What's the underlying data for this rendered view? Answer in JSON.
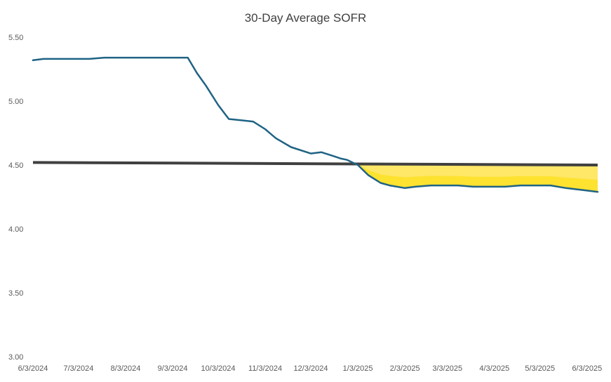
{
  "chart_data": {
    "type": "line",
    "title": "30-Day Average SOFR",
    "xlabel": "",
    "ylabel": "",
    "ylim": [
      3.0,
      5.5
    ],
    "y_ticks": [
      "5.50",
      "5.00",
      "4.50",
      "4.00",
      "3.50",
      "3.00"
    ],
    "x_ticks": [
      "6/3/2024",
      "7/3/2024",
      "8/3/2024",
      "9/3/2024",
      "10/3/2024",
      "11/3/2024",
      "12/3/2024",
      "1/3/2025",
      "2/3/2025",
      "3/3/2025",
      "4/3/2025",
      "5/3/2025",
      "6/3/2025"
    ],
    "grid": false,
    "legend": "none",
    "colors": {
      "series": "#1f6384",
      "reference": "#404040",
      "highlight": "#ffe34d",
      "highlight_dark": "#fde12a"
    },
    "series": [
      {
        "x": [
          "6/3/2024",
          "6/10/2024",
          "6/20/2024",
          "7/3/2024",
          "7/10/2024",
          "7/20/2024",
          "8/3/2024",
          "8/20/2024",
          "9/3/2024",
          "9/13/2024",
          "9/19/2024",
          "9/25/2024",
          "10/3/2024",
          "10/10/2024",
          "10/18/2024",
          "10/26/2024",
          "11/3/2024",
          "11/10/2024",
          "11/20/2024",
          "12/3/2024",
          "12/10/2024",
          "12/18/2024",
          "12/23/2024",
          "12/27/2024",
          "1/3/2025",
          "1/10/2025",
          "1/18/2025",
          "1/24/2025",
          "2/3/2025",
          "2/10/2025",
          "2/20/2025",
          "3/3/2025",
          "3/10/2025",
          "3/20/2025",
          "4/3/2025",
          "4/10/2025",
          "4/20/2025",
          "5/3/2025",
          "5/10/2025",
          "5/20/2025",
          "6/3/2025",
          "6/10/2025"
        ],
        "values": [
          5.32,
          5.33,
          5.33,
          5.33,
          5.33,
          5.34,
          5.34,
          5.34,
          5.34,
          5.34,
          5.22,
          5.12,
          4.97,
          4.86,
          4.85,
          4.84,
          4.78,
          4.71,
          4.64,
          4.59,
          4.6,
          4.57,
          4.55,
          4.54,
          4.5,
          4.42,
          4.36,
          4.34,
          4.32,
          4.33,
          4.34,
          4.34,
          4.34,
          4.33,
          4.33,
          4.33,
          4.34,
          4.34,
          4.34,
          4.32,
          4.3,
          4.29
        ]
      },
      {
        "x": [
          "6/3/2024",
          "6/10/2025"
        ],
        "values": [
          4.52,
          4.5
        ]
      }
    ]
  }
}
